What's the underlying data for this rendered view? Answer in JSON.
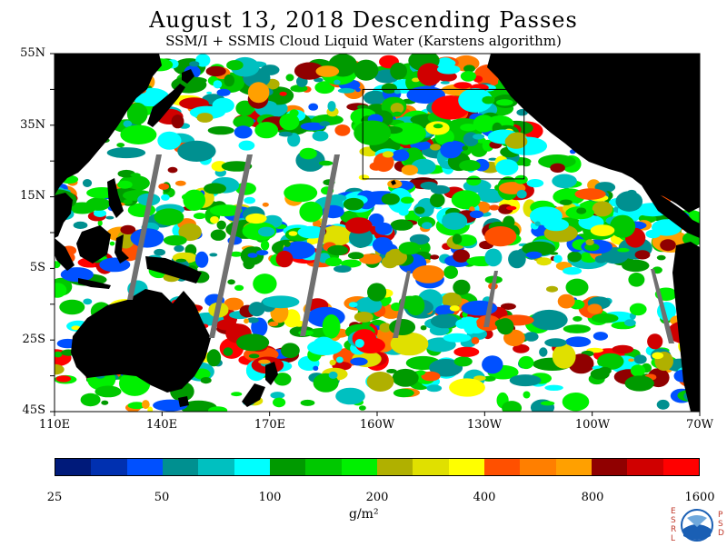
{
  "header": {
    "title": "August 13, 2018  Descending Passes",
    "subtitle": "SSM/I + SSMIS Cloud Liquid Water (Karstens algorithm)"
  },
  "map": {
    "lat_labels": [
      "55N",
      "35N",
      "15N",
      "5S",
      "25S",
      "45S"
    ],
    "lon_labels": [
      "110E",
      "140E",
      "170E",
      "160W",
      "130W",
      "100W",
      "70W"
    ],
    "extent": {
      "lon_min": 110,
      "lon_max": 290,
      "lat_min": -45,
      "lat_max": 55
    },
    "land_color": "#000000",
    "no_data_color": "#ffffff",
    "swath_gap_color": "#707070",
    "highlight_box": {
      "lon_min": 196,
      "lon_max": 241,
      "lat_min": 20,
      "lat_max": 45
    }
  },
  "colorbar": {
    "colors": [
      "#001a7a",
      "#0030b0",
      "#0050ff",
      "#009090",
      "#00c0c0",
      "#00ffff",
      "#009a00",
      "#00c800",
      "#00f000",
      "#b0b000",
      "#e0e000",
      "#ffff00",
      "#ff5000",
      "#ff7f00",
      "#ffa000",
      "#900000",
      "#d00000",
      "#ff0000"
    ],
    "labels": [
      "25",
      "50",
      "100",
      "200",
      "400",
      "800",
      "1600"
    ],
    "unit": "g/m²"
  },
  "logo": {
    "left_letters": [
      "E",
      "S",
      "R",
      "L"
    ],
    "right_letters": [
      "P",
      "S",
      "D"
    ],
    "center_text": "NOAA"
  }
}
